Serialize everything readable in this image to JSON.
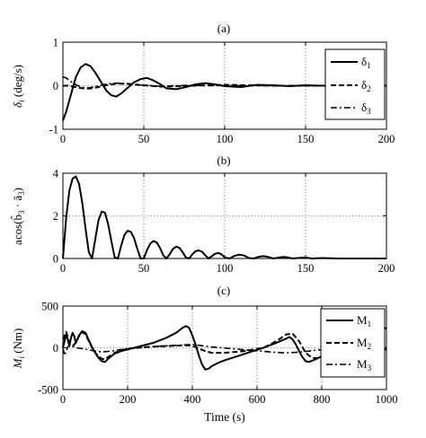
{
  "chart_data": [
    {
      "type": "line",
      "title": "(a)",
      "xlabel": "",
      "ylabel": "δ_i (deg/s)",
      "ylabel_main": "δ",
      "ylabel_sub": "i",
      "ylabel_rest": " (deg/s)",
      "xlim": [
        0,
        200
      ],
      "ylim": [
        -1,
        1
      ],
      "xticks": [
        "0",
        "50",
        "100",
        "150",
        "200"
      ],
      "yticks": [
        "-1",
        "0",
        "1"
      ],
      "grid": true,
      "legend": "top-right",
      "series": [
        {
          "name": "δ1",
          "label_main": "δ",
          "label_sub": "1",
          "style": "solid",
          "x": [
            0,
            2,
            5,
            8,
            11,
            14,
            17,
            20,
            23,
            27,
            30,
            33,
            36,
            40,
            44,
            48,
            52,
            56,
            60,
            64,
            70,
            76,
            82,
            88,
            94,
            100,
            110,
            120,
            130,
            140,
            150,
            160,
            170,
            180,
            190,
            200
          ],
          "y": [
            -0.8,
            -0.6,
            -0.2,
            0.2,
            0.42,
            0.5,
            0.45,
            0.3,
            0.12,
            -0.12,
            -0.22,
            -0.25,
            -0.18,
            -0.05,
            0.08,
            0.15,
            0.18,
            0.12,
            0.04,
            -0.06,
            -0.08,
            -0.03,
            0.03,
            0.06,
            0.03,
            -0.01,
            -0.03,
            0.02,
            0.01,
            -0.01,
            0.01,
            0.0,
            0.0,
            0.0,
            0.0,
            0.0
          ]
        },
        {
          "name": "δ2",
          "label_main": "δ",
          "label_sub": "2",
          "style": "dashed",
          "x": [
            0,
            3,
            6,
            10,
            14,
            18,
            22,
            28,
            34,
            40,
            50,
            60,
            80,
            100,
            130,
            160,
            200
          ],
          "y": [
            0.0,
            0.0,
            -0.02,
            -0.05,
            -0.07,
            -0.06,
            -0.03,
            0.02,
            0.05,
            0.04,
            0.01,
            -0.02,
            0.0,
            0.02,
            0.0,
            0.0,
            0.0
          ]
        },
        {
          "name": "δ3",
          "label_main": "δ",
          "label_sub": "3",
          "style": "dashdot",
          "x": [
            0,
            2,
            4,
            8,
            12,
            16,
            20,
            26,
            32,
            40,
            50,
            60,
            70,
            80,
            90,
            100,
            120,
            140,
            160,
            200
          ],
          "y": [
            0.2,
            0.18,
            0.12,
            0.02,
            -0.04,
            -0.05,
            -0.02,
            0.03,
            0.06,
            0.05,
            0.01,
            -0.01,
            0.0,
            0.01,
            0.0,
            0.0,
            0.0,
            0.0,
            0.0,
            0.0
          ]
        }
      ]
    },
    {
      "type": "line",
      "title": "(b)",
      "xlabel": "",
      "ylabel": "acos(b̂3 · â3)",
      "ylabel_main": "acos(b̂",
      "ylabel_sub1": "3",
      "ylabel_mid": " · â",
      "ylabel_sub2": "3",
      "ylabel_end": ")",
      "xlim": [
        0,
        200
      ],
      "ylim": [
        0,
        4
      ],
      "xticks": [
        "0",
        "50",
        "100",
        "150",
        "200"
      ],
      "yticks": [
        "0",
        "2",
        "4"
      ],
      "grid": true,
      "series": [
        {
          "name": "",
          "style": "solid",
          "x": [
            0,
            2,
            4,
            6,
            8,
            10,
            12,
            14,
            16,
            18,
            20,
            22,
            24,
            26,
            28,
            30,
            32,
            34,
            36,
            38,
            40,
            42,
            44,
            46,
            48,
            50,
            52,
            54,
            56,
            58,
            60,
            62,
            64,
            66,
            68,
            70,
            72,
            74,
            76,
            78,
            80,
            82,
            84,
            86,
            88,
            90,
            92,
            94,
            96,
            98,
            100,
            103,
            106,
            109,
            112,
            115,
            118,
            121,
            124,
            127,
            130,
            133,
            136,
            139,
            142,
            145,
            148,
            151,
            154,
            157,
            160,
            165,
            170,
            175,
            180,
            185,
            190,
            195,
            200
          ],
          "y": [
            0.0,
            1.9,
            3.2,
            3.75,
            3.85,
            3.5,
            2.6,
            1.4,
            0.3,
            0.0,
            0.9,
            1.8,
            2.2,
            2.15,
            1.6,
            0.8,
            0.05,
            0.0,
            0.6,
            1.1,
            1.3,
            1.25,
            0.95,
            0.45,
            0.0,
            0.0,
            0.4,
            0.7,
            0.82,
            0.75,
            0.5,
            0.15,
            0.0,
            0.2,
            0.45,
            0.55,
            0.5,
            0.3,
            0.05,
            0.0,
            0.2,
            0.34,
            0.38,
            0.32,
            0.15,
            0.0,
            0.1,
            0.22,
            0.26,
            0.2,
            0.05,
            0.0,
            0.12,
            0.18,
            0.14,
            0.02,
            0.0,
            0.08,
            0.11,
            0.07,
            0.0,
            0.04,
            0.07,
            0.05,
            0.0,
            0.02,
            0.04,
            0.03,
            0.0,
            0.01,
            0.02,
            0.01,
            0.0,
            0.0,
            0.0,
            0.0,
            0.0,
            0.0,
            0.0
          ]
        }
      ]
    },
    {
      "type": "line",
      "title": "(c)",
      "xlabel": "Time (s)",
      "ylabel": "M_i (Nm)",
      "ylabel_main": "M",
      "ylabel_sub": "i",
      "ylabel_rest": " (Nm)",
      "xlim": [
        0,
        1000
      ],
      "ylim": [
        -500,
        500
      ],
      "xticks": [
        "0",
        "200",
        "400",
        "600",
        "800",
        "1000"
      ],
      "yticks": [
        "-500",
        "0",
        "500"
      ],
      "grid": true,
      "legend": "top-right",
      "series": [
        {
          "name": "M1",
          "label_main": "M",
          "label_sub": "1",
          "style": "solid",
          "x": [
            0,
            5,
            10,
            15,
            20,
            25,
            30,
            35,
            40,
            50,
            60,
            70,
            80,
            90,
            100,
            110,
            120,
            130,
            140,
            160,
            180,
            200,
            240,
            280,
            320,
            350,
            370,
            380,
            390,
            400,
            410,
            420,
            430,
            440,
            450,
            460,
            480,
            500,
            540,
            580,
            620,
            660,
            690,
            700,
            710,
            720,
            730,
            740,
            750,
            760,
            780,
            800,
            840,
            880,
            920,
            960,
            980,
            1000
          ],
          "y": [
            0,
            80,
            160,
            100,
            20,
            120,
            180,
            140,
            60,
            150,
            200,
            180,
            90,
            10,
            -60,
            -120,
            -160,
            -170,
            -130,
            -70,
            -40,
            -20,
            20,
            60,
            120,
            180,
            240,
            260,
            240,
            150,
            40,
            -90,
            -200,
            -260,
            -250,
            -220,
            -180,
            -150,
            -100,
            -50,
            0,
            60,
            110,
            130,
            100,
            40,
            -40,
            -110,
            -160,
            -170,
            -140,
            -100,
            -40,
            20,
            80,
            150,
            200,
            240
          ]
        },
        {
          "name": "M2",
          "label_main": "M",
          "label_sub": "2",
          "style": "dashed",
          "x": [
            0,
            5,
            10,
            15,
            20,
            30,
            40,
            50,
            60,
            70,
            80,
            90,
            100,
            110,
            120,
            130,
            140,
            160,
            180,
            200,
            260,
            320,
            380,
            400,
            420,
            440,
            460,
            500,
            560,
            620,
            660,
            690,
            710,
            730,
            750,
            770,
            800,
            860,
            920,
            960,
            1000
          ],
          "y": [
            0,
            150,
            190,
            130,
            50,
            20,
            60,
            140,
            190,
            160,
            80,
            0,
            -60,
            -100,
            -130,
            -140,
            -110,
            -60,
            -30,
            -10,
            10,
            20,
            30,
            25,
            -10,
            -40,
            -60,
            -60,
            -40,
            0,
            80,
            160,
            170,
            80,
            -60,
            -120,
            -130,
            -80,
            -30,
            -20,
            -20
          ]
        },
        {
          "name": "M3",
          "label_main": "M",
          "label_sub": "3",
          "style": "dashdot",
          "x": [
            0,
            5,
            10,
            15,
            20,
            30,
            40,
            60,
            80,
            100,
            120,
            150,
            200,
            260,
            320,
            380,
            400,
            420,
            460,
            520,
            580,
            640,
            680,
            720,
            760,
            800,
            860,
            920,
            960,
            1000
          ],
          "y": [
            0,
            -90,
            -40,
            10,
            30,
            20,
            0,
            -10,
            -25,
            -40,
            -50,
            -40,
            -10,
            10,
            25,
            35,
            40,
            30,
            10,
            -10,
            -30,
            -50,
            -60,
            -55,
            -40,
            -20,
            0,
            10,
            5,
            0
          ]
        }
      ]
    }
  ]
}
